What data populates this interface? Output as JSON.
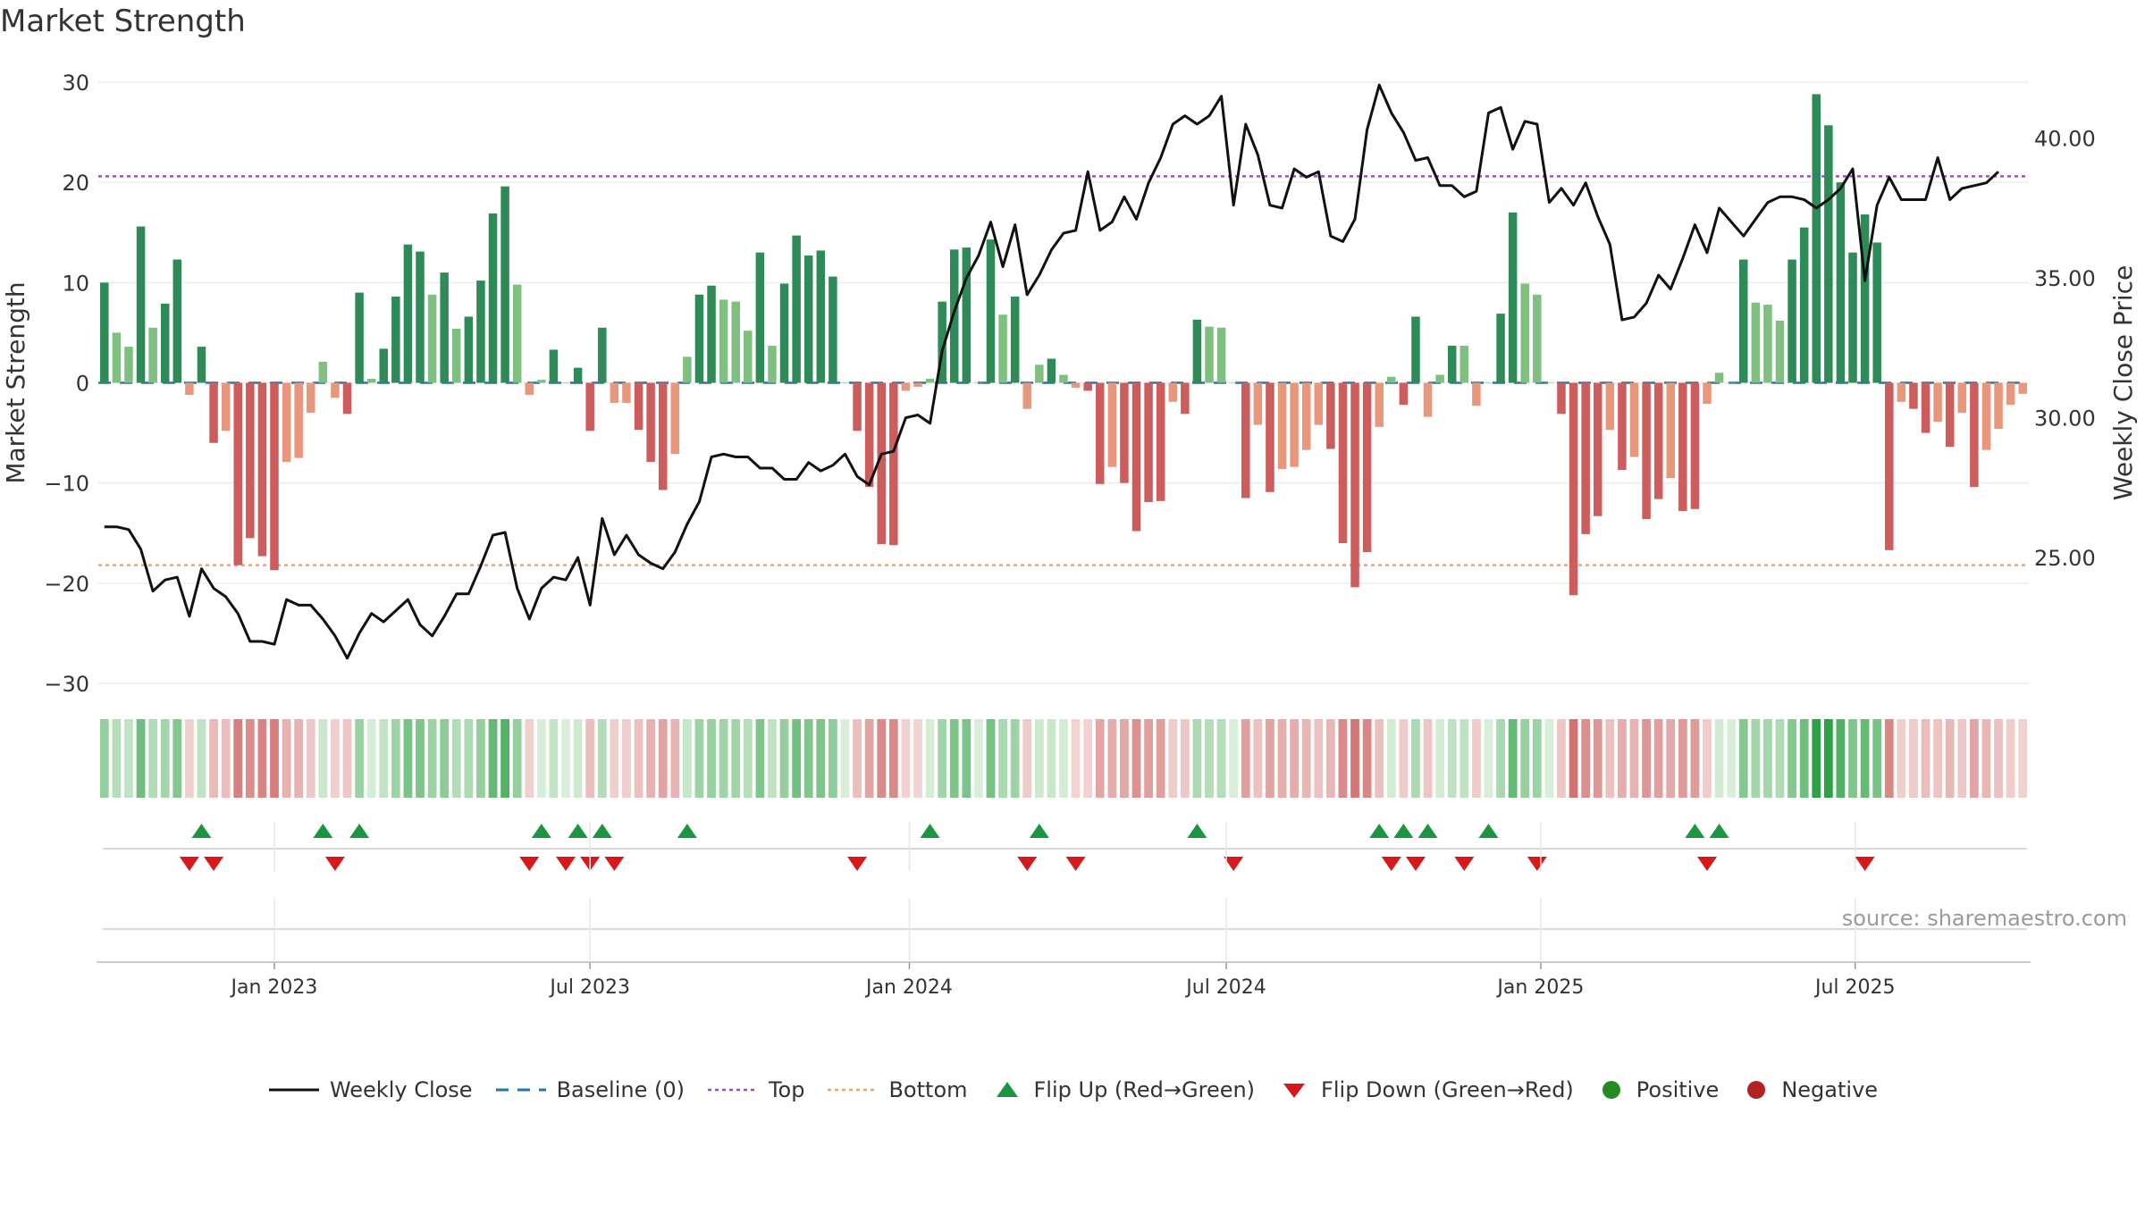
{
  "title": "Market Strength",
  "source": "source: sharemaestro.com",
  "chart_data": {
    "type": "bar",
    "title": "Market Strength",
    "y_left_label": "Market Strength",
    "y_right_label": "Weekly Close Price",
    "y_left_ticks": [
      30,
      20,
      10,
      0,
      -10,
      -20,
      -30
    ],
    "y_left_tick_labels": [
      "30",
      "20",
      "10",
      "0",
      "−10",
      "−20",
      "−30"
    ],
    "y_left_range": [
      -30,
      30
    ],
    "y_right_ticks": [
      40,
      35,
      30,
      25
    ],
    "y_right_tick_labels": [
      "40.00",
      "35.00",
      "30.00",
      "25.00"
    ],
    "y_right_range": [
      20.5,
      42.0
    ],
    "x_tick_labels": [
      "Jan 2023",
      "Jul 2023",
      "Jan 2024",
      "Jul 2024",
      "Jan 2025",
      "Jul 2025"
    ],
    "x_tick_index": [
      14,
      40,
      66.3,
      92.4,
      118.3,
      144.2
    ],
    "top_line": 20.6,
    "bottom_line": -18.2,
    "baseline": 0,
    "strength": [
      10.0,
      5.0,
      3.6,
      15.6,
      5.5,
      7.9,
      12.3,
      -1.2,
      3.6,
      -6.0,
      -4.8,
      -18.2,
      -15.5,
      -17.3,
      -18.7,
      -7.9,
      -7.5,
      -3.0,
      2.1,
      -1.5,
      -3.1,
      9.0,
      0.4,
      3.4,
      8.6,
      13.8,
      13.1,
      8.8,
      11.0,
      5.4,
      6.6,
      10.2,
      16.9,
      19.6,
      9.8,
      -1.2,
      0.3,
      3.3,
      0.0,
      1.5,
      -4.8,
      5.5,
      -2.0,
      -2.0,
      -4.7,
      -7.9,
      -10.7,
      -7.1,
      2.6,
      8.8,
      9.7,
      8.3,
      8.1,
      5.2,
      13.0,
      3.7,
      9.9,
      14.7,
      12.7,
      13.2,
      10.6,
      0.0,
      -4.8,
      -10.4,
      -16.1,
      -16.2,
      -0.8,
      -0.4,
      0.4,
      8.1,
      13.3,
      13.5,
      0.0,
      14.3,
      6.8,
      8.6,
      -2.6,
      1.8,
      2.4,
      0.8,
      -0.5,
      -0.8,
      -10.1,
      -8.4,
      -10.0,
      -14.8,
      -11.9,
      -11.8,
      -1.9,
      -3.1,
      6.3,
      5.6,
      5.5,
      0.0,
      -11.5,
      -4.2,
      -10.9,
      -8.6,
      -8.4,
      -6.7,
      -4.2,
      -6.6,
      -16.0,
      -20.4,
      -16.9,
      -4.4,
      0.6,
      -2.2,
      6.6,
      -3.4,
      0.8,
      3.7,
      3.7,
      -2.3,
      0.0,
      6.9,
      17.0,
      9.9,
      8.8,
      0.0,
      -3.1,
      -21.2,
      -15.1,
      -13.3,
      -4.7,
      -8.7,
      -7.4,
      -13.6,
      -11.6,
      -9.5,
      -12.8,
      -12.6,
      -2.1,
      1.0,
      0.0,
      12.3,
      8.0,
      7.8,
      6.2,
      12.3,
      15.5,
      28.8,
      25.7,
      20.0,
      13.0,
      16.8,
      14.0,
      -16.7,
      -1.9,
      -2.6,
      -5.0,
      -3.9,
      -6.4,
      -3.0,
      -10.4,
      -6.7,
      -4.6,
      -2.2,
      -1.1
    ],
    "intensity_note": "bar color shade: dark green/red for strong values, light for weaker",
    "close": [
      26.1,
      26.1,
      26.0,
      25.3,
      23.8,
      24.2,
      24.3,
      22.9,
      24.6,
      23.9,
      23.6,
      23.0,
      22.0,
      22.0,
      21.9,
      23.5,
      23.3,
      23.3,
      22.8,
      22.2,
      21.4,
      22.3,
      23.0,
      22.7,
      23.1,
      23.5,
      22.6,
      22.2,
      22.9,
      23.7,
      23.7,
      24.7,
      25.8,
      25.9,
      23.9,
      22.8,
      23.9,
      24.3,
      24.2,
      25.0,
      23.3,
      26.4,
      25.1,
      25.8,
      25.1,
      24.8,
      24.6,
      25.2,
      26.2,
      27.0,
      28.6,
      28.7,
      28.6,
      28.6,
      28.2,
      28.2,
      27.8,
      27.8,
      28.4,
      28.1,
      28.3,
      28.7,
      27.9,
      27.6,
      28.7,
      28.8,
      30.0,
      30.1,
      29.8,
      32.4,
      33.8,
      35.0,
      35.8,
      37.0,
      35.4,
      36.9,
      34.4,
      35.1,
      36.0,
      36.6,
      36.7,
      38.8,
      36.7,
      37.0,
      37.9,
      37.1,
      38.4,
      39.3,
      40.5,
      40.8,
      40.5,
      40.8,
      41.5,
      37.6,
      40.5,
      39.4,
      37.6,
      37.5,
      38.9,
      38.6,
      38.8,
      36.5,
      36.3,
      37.1,
      40.3,
      41.9,
      40.9,
      40.2,
      39.2,
      39.3,
      38.3,
      38.3,
      37.9,
      38.1,
      40.9,
      41.1,
      39.6,
      40.6,
      40.5,
      37.7,
      38.2,
      37.6,
      38.4,
      37.2,
      36.2,
      33.5,
      33.6,
      34.1,
      35.1,
      34.6,
      35.7,
      36.9,
      35.9,
      37.5,
      37.0,
      36.5,
      37.1,
      37.7,
      37.9,
      37.9,
      37.8,
      37.5,
      37.8,
      38.2,
      38.9,
      34.9,
      37.6,
      38.6,
      37.8,
      37.8,
      37.8,
      39.3,
      37.8,
      38.2,
      38.3,
      38.4,
      38.8
    ],
    "flip_up_index": [
      8,
      18,
      21,
      36,
      39,
      41,
      48,
      68,
      77,
      90,
      105,
      107,
      109,
      114,
      131,
      133
    ],
    "flip_down_index": [
      7,
      9,
      19,
      35,
      38,
      40,
      42,
      62,
      76,
      80,
      93,
      106,
      108,
      112,
      118,
      132,
      145
    ],
    "legend": [
      "Weekly Close",
      "Baseline (0)",
      "Top",
      "Bottom",
      "Flip Up (Red→Green)",
      "Flip Down (Green→Red)",
      "Positive",
      "Negative"
    ],
    "colors": {
      "strong_positive": "#2e8b57",
      "weak_positive": "#7fbf7f",
      "strong_negative": "#cd5c5c",
      "weak_negative": "#e9967a",
      "close_line": "#111111",
      "baseline": "#1f77b4",
      "top": "#9b4dca",
      "bottom": "#f4a261",
      "flip_up": "#1a9641",
      "flip_down": "#d7191c",
      "positive_dot": "#228b22",
      "negative_dot": "#b22222"
    }
  }
}
